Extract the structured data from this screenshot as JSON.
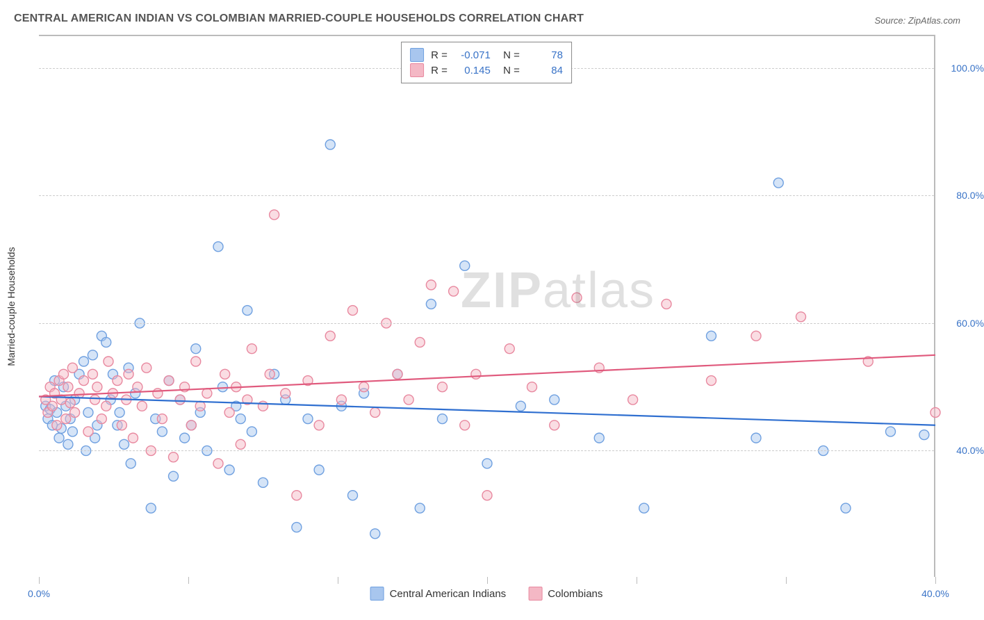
{
  "title": "CENTRAL AMERICAN INDIAN VS COLOMBIAN MARRIED-COUPLE HOUSEHOLDS CORRELATION CHART",
  "source": "Source: ZipAtlas.com",
  "watermark_bold": "ZIP",
  "watermark_thin": "atlas",
  "y_axis_title": "Married-couple Households",
  "chart": {
    "type": "scatter",
    "background_color": "#ffffff",
    "grid_color": "#cccccc",
    "border_color": "#bbbbbb",
    "xlim": [
      0,
      40
    ],
    "ylim": [
      20,
      105
    ],
    "x_ticks": [
      0,
      6.67,
      13.33,
      20,
      26.67,
      33.33,
      40
    ],
    "x_tick_labels": {
      "0": "0.0%",
      "40": "40.0%"
    },
    "y_gridlines": [
      40,
      60,
      80,
      100
    ],
    "y_tick_labels": {
      "40": "40.0%",
      "60": "60.0%",
      "80": "80.0%",
      "100": "100.0%"
    },
    "marker_radius": 7,
    "marker_stroke_width": 1.4,
    "marker_fill_opacity": 0.18,
    "trend_line_width": 2.2,
    "label_fontsize": 14,
    "tick_color": "#3973c7",
    "series": [
      {
        "name": "Central American Indians",
        "color_stroke": "#6fa0e0",
        "color_fill": "#a8c6ee",
        "line_color": "#2f6fd0",
        "trend": {
          "x1": 0,
          "y1": 48.5,
          "x2": 40,
          "y2": 44.0
        },
        "stat_r": "-0.071",
        "stat_n": "78",
        "points": [
          [
            0.3,
            47
          ],
          [
            0.4,
            45
          ],
          [
            0.5,
            46.5
          ],
          [
            0.6,
            44
          ],
          [
            0.7,
            51
          ],
          [
            0.8,
            46
          ],
          [
            0.9,
            42
          ],
          [
            1.0,
            43.5
          ],
          [
            1.1,
            50
          ],
          [
            1.2,
            47
          ],
          [
            1.3,
            41
          ],
          [
            1.4,
            45
          ],
          [
            1.5,
            43
          ],
          [
            1.6,
            48
          ],
          [
            1.8,
            52
          ],
          [
            2.0,
            54
          ],
          [
            2.1,
            40
          ],
          [
            2.2,
            46
          ],
          [
            2.4,
            55
          ],
          [
            2.5,
            42
          ],
          [
            2.6,
            44
          ],
          [
            2.8,
            58
          ],
          [
            3.0,
            57
          ],
          [
            3.2,
            48
          ],
          [
            3.3,
            52
          ],
          [
            3.5,
            44
          ],
          [
            3.6,
            46
          ],
          [
            3.8,
            41
          ],
          [
            4.0,
            53
          ],
          [
            4.1,
            38
          ],
          [
            4.3,
            49
          ],
          [
            4.5,
            60
          ],
          [
            5.0,
            31
          ],
          [
            5.2,
            45
          ],
          [
            5.5,
            43
          ],
          [
            5.8,
            51
          ],
          [
            6.0,
            36
          ],
          [
            6.3,
            48
          ],
          [
            6.5,
            42
          ],
          [
            6.8,
            44
          ],
          [
            7.0,
            56
          ],
          [
            7.2,
            46
          ],
          [
            7.5,
            40
          ],
          [
            8.0,
            72
          ],
          [
            8.2,
            50
          ],
          [
            8.5,
            37
          ],
          [
            8.8,
            47
          ],
          [
            9.0,
            45
          ],
          [
            9.3,
            62
          ],
          [
            9.5,
            43
          ],
          [
            10.0,
            35
          ],
          [
            10.5,
            52
          ],
          [
            11.0,
            48
          ],
          [
            11.5,
            28
          ],
          [
            12.0,
            45
          ],
          [
            12.5,
            37
          ],
          [
            13.0,
            88
          ],
          [
            13.5,
            47
          ],
          [
            14.0,
            33
          ],
          [
            14.5,
            49
          ],
          [
            15.0,
            27
          ],
          [
            16.0,
            52
          ],
          [
            17.0,
            31
          ],
          [
            17.5,
            63
          ],
          [
            18.0,
            45
          ],
          [
            19.0,
            69
          ],
          [
            20.0,
            38
          ],
          [
            21.5,
            47
          ],
          [
            23.0,
            48
          ],
          [
            25.0,
            42
          ],
          [
            27.0,
            31
          ],
          [
            30.0,
            58
          ],
          [
            32.0,
            42
          ],
          [
            33.0,
            82
          ],
          [
            35.0,
            40
          ],
          [
            36.0,
            31
          ],
          [
            38.0,
            43
          ],
          [
            39.5,
            42.5
          ]
        ]
      },
      {
        "name": "Colombians",
        "color_stroke": "#e8889f",
        "color_fill": "#f4b8c5",
        "line_color": "#e05a7d",
        "trend": {
          "x1": 0,
          "y1": 48.5,
          "x2": 40,
          "y2": 55.0
        },
        "stat_r": "0.145",
        "stat_n": "84",
        "points": [
          [
            0.3,
            48
          ],
          [
            0.4,
            46
          ],
          [
            0.5,
            50
          ],
          [
            0.6,
            47
          ],
          [
            0.7,
            49
          ],
          [
            0.8,
            44
          ],
          [
            0.9,
            51
          ],
          [
            1.0,
            48
          ],
          [
            1.1,
            52
          ],
          [
            1.2,
            45
          ],
          [
            1.3,
            50
          ],
          [
            1.4,
            47.5
          ],
          [
            1.5,
            53
          ],
          [
            1.6,
            46
          ],
          [
            1.8,
            49
          ],
          [
            2.0,
            51
          ],
          [
            2.2,
            43
          ],
          [
            2.4,
            52
          ],
          [
            2.5,
            48
          ],
          [
            2.6,
            50
          ],
          [
            2.8,
            45
          ],
          [
            3.0,
            47
          ],
          [
            3.1,
            54
          ],
          [
            3.3,
            49
          ],
          [
            3.5,
            51
          ],
          [
            3.7,
            44
          ],
          [
            3.9,
            48
          ],
          [
            4.0,
            52
          ],
          [
            4.2,
            42
          ],
          [
            4.4,
            50
          ],
          [
            4.6,
            47
          ],
          [
            4.8,
            53
          ],
          [
            5.0,
            40
          ],
          [
            5.3,
            49
          ],
          [
            5.5,
            45
          ],
          [
            5.8,
            51
          ],
          [
            6.0,
            39
          ],
          [
            6.3,
            48
          ],
          [
            6.5,
            50
          ],
          [
            6.8,
            44
          ],
          [
            7.0,
            54
          ],
          [
            7.2,
            47
          ],
          [
            7.5,
            49
          ],
          [
            8.0,
            38
          ],
          [
            8.3,
            52
          ],
          [
            8.5,
            46
          ],
          [
            8.8,
            50
          ],
          [
            9.0,
            41
          ],
          [
            9.3,
            48
          ],
          [
            9.5,
            56
          ],
          [
            10.0,
            47
          ],
          [
            10.3,
            52
          ],
          [
            10.5,
            77
          ],
          [
            11.0,
            49
          ],
          [
            11.5,
            33
          ],
          [
            12.0,
            51
          ],
          [
            12.5,
            44
          ],
          [
            13.0,
            58
          ],
          [
            13.5,
            48
          ],
          [
            14.0,
            62
          ],
          [
            14.5,
            50
          ],
          [
            15.0,
            46
          ],
          [
            15.5,
            60
          ],
          [
            16.0,
            52
          ],
          [
            16.5,
            48
          ],
          [
            17.0,
            57
          ],
          [
            17.5,
            66
          ],
          [
            18.0,
            50
          ],
          [
            18.5,
            65
          ],
          [
            19.0,
            44
          ],
          [
            19.5,
            52
          ],
          [
            20.0,
            33
          ],
          [
            21.0,
            56
          ],
          [
            22.0,
            50
          ],
          [
            23.0,
            44
          ],
          [
            24.0,
            64
          ],
          [
            25.0,
            53
          ],
          [
            26.5,
            48
          ],
          [
            28.0,
            63
          ],
          [
            30.0,
            51
          ],
          [
            32.0,
            58
          ],
          [
            34.0,
            61
          ],
          [
            37.0,
            54
          ],
          [
            40.0,
            46
          ]
        ]
      }
    ]
  },
  "legend_bottom": [
    {
      "label": "Central American Indians",
      "stroke": "#6fa0e0",
      "fill": "#a8c6ee"
    },
    {
      "label": "Colombians",
      "stroke": "#e8889f",
      "fill": "#f4b8c5"
    }
  ]
}
